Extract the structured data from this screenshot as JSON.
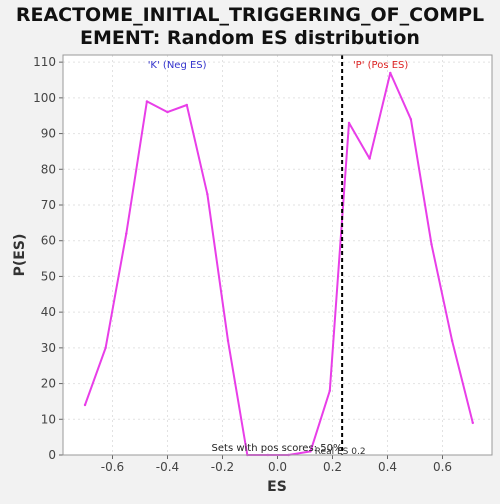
{
  "chart_data": {
    "type": "line",
    "title_lines": [
      "REACTOME_INITIAL_TRIGGERING_OF_COMPL",
      "EMENT: Random ES distribution"
    ],
    "xlabel": "ES",
    "ylabel": "P(ES)",
    "xlim": [
      -0.78,
      0.78
    ],
    "ylim": [
      0,
      112
    ],
    "x_ticks": [
      -0.6,
      -0.4,
      -0.2,
      0.0,
      0.2,
      0.4,
      0.6
    ],
    "x_tick_labels": [
      "-0.6",
      "-0.4",
      "-0.2",
      "0.0",
      "0.2",
      "0.4",
      "0.6"
    ],
    "y_ticks": [
      0,
      10,
      20,
      30,
      40,
      50,
      60,
      70,
      80,
      90,
      100,
      110
    ],
    "y_tick_labels": [
      "0",
      "10",
      "20",
      "30",
      "40",
      "50",
      "60",
      "70",
      "80",
      "90",
      "100",
      "110"
    ],
    "grid": true,
    "series": [
      {
        "color": "#e83ee8",
        "x": [
          -0.7,
          -0.625,
          -0.55,
          -0.475,
          -0.4,
          -0.33,
          -0.255,
          -0.18,
          -0.11,
          -0.035,
          0.04,
          0.12,
          0.19,
          0.26,
          0.335,
          0.41,
          0.485,
          0.56,
          0.635,
          0.71
        ],
        "y": [
          14,
          30,
          62,
          99,
          96,
          98,
          73,
          32,
          0,
          0,
          0,
          1,
          18,
          93,
          83,
          107,
          94,
          59,
          32,
          9
        ]
      }
    ],
    "real_es_line": {
      "x": 0.235,
      "label": "Real ES 0.2",
      "color": "#000000"
    },
    "annotations": {
      "neg": {
        "text": "'K' (Neg ES)",
        "x": -0.365,
        "color": "#3333cc"
      },
      "pos": {
        "text": "'P' (Pos ES)",
        "x": 0.375,
        "color": "#dd2222"
      },
      "bottom_note": "Sets with pos scores: 50%"
    }
  }
}
